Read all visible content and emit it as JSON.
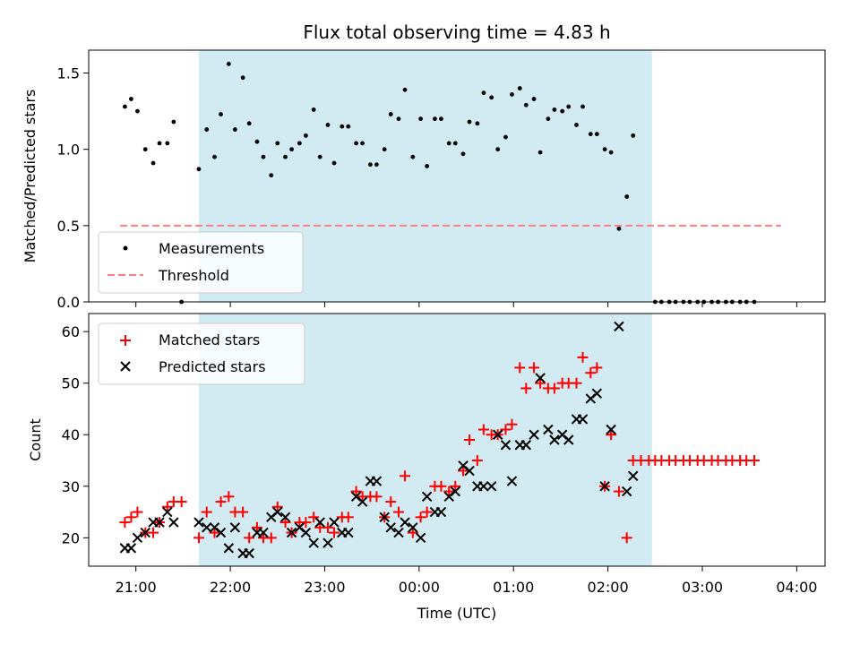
{
  "figure": {
    "title": "Flux total observing time = 4.83 h",
    "shaded_region": {
      "x_start": "21:40",
      "x_end": "02:28"
    },
    "shade_color": "#add8e6",
    "colors": {
      "measurement": "#000000",
      "threshold": "#ff7f7f",
      "matched": "#ff0000",
      "predicted": "#000000"
    }
  },
  "chart_data": [
    {
      "type": "scatter",
      "ylabel": "Matched/Predicted stars",
      "ylim": [
        0,
        1.65
      ],
      "yticks": [
        "0.0",
        "0.5",
        "1.0",
        "1.5"
      ],
      "grid": false,
      "legend_position": "lower-left",
      "legend": [
        "Measurements",
        "Threshold"
      ],
      "threshold": {
        "y": 0.5,
        "x_start": "20:50",
        "x_end": "03:50"
      },
      "measurements": [
        [
          "20:53",
          1.28
        ],
        [
          "20:57",
          1.33
        ],
        [
          "21:01",
          1.25
        ],
        [
          "21:06",
          1.0
        ],
        [
          "21:11",
          0.91
        ],
        [
          "21:15",
          1.04
        ],
        [
          "21:20",
          1.04
        ],
        [
          "21:24",
          1.18
        ],
        [
          "21:29",
          0.0
        ],
        [
          "21:40",
          0.87
        ],
        [
          "21:45",
          1.13
        ],
        [
          "21:50",
          0.95
        ],
        [
          "21:54",
          1.23
        ],
        [
          "21:59",
          1.56
        ],
        [
          "22:03",
          1.13
        ],
        [
          "22:08",
          1.47
        ],
        [
          "22:12",
          1.17
        ],
        [
          "22:17",
          1.05
        ],
        [
          "22:21",
          0.95
        ],
        [
          "22:26",
          0.83
        ],
        [
          "22:30",
          1.04
        ],
        [
          "22:35",
          0.95
        ],
        [
          "22:39",
          1.0
        ],
        [
          "22:44",
          1.04
        ],
        [
          "22:48",
          1.09
        ],
        [
          "22:53",
          1.26
        ],
        [
          "22:57",
          0.95
        ],
        [
          "23:02",
          1.16
        ],
        [
          "23:06",
          0.91
        ],
        [
          "23:11",
          1.15
        ],
        [
          "23:15",
          1.15
        ],
        [
          "23:20",
          1.04
        ],
        [
          "23:24",
          1.04
        ],
        [
          "23:29",
          0.9
        ],
        [
          "23:33",
          0.9
        ],
        [
          "23:38",
          1.0
        ],
        [
          "23:42",
          1.23
        ],
        [
          "23:47",
          1.2
        ],
        [
          "23:51",
          1.39
        ],
        [
          "23:56",
          0.95
        ],
        [
          "00:01",
          1.2
        ],
        [
          "00:05",
          0.89
        ],
        [
          "00:10",
          1.2
        ],
        [
          "00:14",
          1.2
        ],
        [
          "00:19",
          1.04
        ],
        [
          "00:23",
          1.04
        ],
        [
          "00:28",
          0.97
        ],
        [
          "00:32",
          1.18
        ],
        [
          "00:37",
          1.17
        ],
        [
          "00:41",
          1.37
        ],
        [
          "00:46",
          1.34
        ],
        [
          "00:50",
          1.0
        ],
        [
          "00:55",
          1.08
        ],
        [
          "00:59",
          1.36
        ],
        [
          "01:04",
          1.4
        ],
        [
          "01:08",
          1.29
        ],
        [
          "01:13",
          1.33
        ],
        [
          "01:17",
          0.98
        ],
        [
          "01:22",
          1.2
        ],
        [
          "01:26",
          1.26
        ],
        [
          "01:31",
          1.25
        ],
        [
          "01:35",
          1.28
        ],
        [
          "01:40",
          1.16
        ],
        [
          "01:44",
          1.28
        ],
        [
          "01:49",
          1.1
        ],
        [
          "01:53",
          1.1
        ],
        [
          "01:58",
          1.0
        ],
        [
          "02:02",
          0.98
        ],
        [
          "02:07",
          0.48
        ],
        [
          "02:12",
          0.69
        ],
        [
          "02:16",
          1.09
        ],
        [
          "02:30",
          0.0
        ],
        [
          "02:34",
          0.0
        ],
        [
          "02:39",
          0.0
        ],
        [
          "02:43",
          0.0
        ],
        [
          "02:48",
          0.0
        ],
        [
          "02:52",
          0.0
        ],
        [
          "02:57",
          0.0
        ],
        [
          "03:01",
          0.0
        ],
        [
          "03:06",
          0.0
        ],
        [
          "03:10",
          0.0
        ],
        [
          "03:15",
          0.0
        ],
        [
          "03:19",
          0.0
        ],
        [
          "03:24",
          0.0
        ],
        [
          "03:28",
          0.0
        ],
        [
          "03:33",
          0.0
        ]
      ]
    },
    {
      "type": "scatter",
      "xlabel": "Time (UTC)",
      "ylabel": "Count",
      "ylim": [
        14.5,
        63.5
      ],
      "yticks": [
        "20",
        "30",
        "40",
        "50",
        "60"
      ],
      "xticks": [
        "21:00",
        "22:00",
        "23:00",
        "00:00",
        "01:00",
        "02:00",
        "03:00",
        "04:00"
      ],
      "grid": false,
      "legend_position": "upper-left",
      "legend": [
        "Matched stars",
        "Predicted stars"
      ],
      "series": [
        {
          "name": "Matched stars",
          "marker": "+",
          "values": [
            [
              "20:53",
              23
            ],
            [
              "20:57",
              24
            ],
            [
              "21:01",
              25
            ],
            [
              "21:06",
              21
            ],
            [
              "21:11",
              21
            ],
            [
              "21:15",
              23
            ],
            [
              "21:20",
              26
            ],
            [
              "21:24",
              27
            ],
            [
              "21:29",
              27
            ],
            [
              "21:40",
              20
            ],
            [
              "21:45",
              25
            ],
            [
              "21:50",
              21
            ],
            [
              "21:54",
              27
            ],
            [
              "21:59",
              28
            ],
            [
              "22:03",
              25
            ],
            [
              "22:08",
              25
            ],
            [
              "22:12",
              20
            ],
            [
              "22:17",
              22
            ],
            [
              "22:21",
              20
            ],
            [
              "22:26",
              20
            ],
            [
              "22:30",
              26
            ],
            [
              "22:35",
              23
            ],
            [
              "22:39",
              21
            ],
            [
              "22:44",
              23
            ],
            [
              "22:48",
              23
            ],
            [
              "22:53",
              24
            ],
            [
              "22:57",
              22
            ],
            [
              "23:02",
              22
            ],
            [
              "23:06",
              21
            ],
            [
              "23:11",
              24
            ],
            [
              "23:15",
              24
            ],
            [
              "23:20",
              29
            ],
            [
              "23:24",
              28
            ],
            [
              "23:29",
              28
            ],
            [
              "23:33",
              28
            ],
            [
              "23:38",
              24
            ],
            [
              "23:42",
              27
            ],
            [
              "23:47",
              25
            ],
            [
              "23:51",
              32
            ],
            [
              "23:56",
              21
            ],
            [
              "00:01",
              24
            ],
            [
              "00:05",
              25
            ],
            [
              "00:10",
              30
            ],
            [
              "00:14",
              30
            ],
            [
              "00:19",
              29
            ],
            [
              "00:23",
              30
            ],
            [
              "00:28",
              33
            ],
            [
              "00:32",
              39
            ],
            [
              "00:37",
              35
            ],
            [
              "00:41",
              41
            ],
            [
              "00:46",
              40
            ],
            [
              "00:50",
              40
            ],
            [
              "00:55",
              41
            ],
            [
              "00:59",
              42
            ],
            [
              "01:04",
              53
            ],
            [
              "01:08",
              49
            ],
            [
              "01:13",
              53
            ],
            [
              "01:17",
              50
            ],
            [
              "01:22",
              49
            ],
            [
              "01:26",
              49
            ],
            [
              "01:31",
              50
            ],
            [
              "01:35",
              50
            ],
            [
              "01:40",
              50
            ],
            [
              "01:44",
              55
            ],
            [
              "01:49",
              52
            ],
            [
              "01:53",
              53
            ],
            [
              "01:58",
              30
            ],
            [
              "02:02",
              40
            ],
            [
              "02:07",
              29
            ],
            [
              "02:12",
              20
            ],
            [
              "02:16",
              35
            ],
            [
              "02:21",
              35
            ],
            [
              "02:26",
              35
            ],
            [
              "02:30",
              35
            ],
            [
              "02:34",
              35
            ],
            [
              "02:39",
              35
            ],
            [
              "02:43",
              35
            ],
            [
              "02:48",
              35
            ],
            [
              "02:52",
              35
            ],
            [
              "02:57",
              35
            ],
            [
              "03:01",
              35
            ],
            [
              "03:06",
              35
            ],
            [
              "03:10",
              35
            ],
            [
              "03:15",
              35
            ],
            [
              "03:19",
              35
            ],
            [
              "03:24",
              35
            ],
            [
              "03:28",
              35
            ],
            [
              "03:33",
              35
            ]
          ]
        },
        {
          "name": "Predicted stars",
          "marker": "x",
          "values": [
            [
              "20:53",
              18
            ],
            [
              "20:57",
              18
            ],
            [
              "21:01",
              20
            ],
            [
              "21:06",
              21
            ],
            [
              "21:11",
              23
            ],
            [
              "21:15",
              23
            ],
            [
              "21:20",
              25
            ],
            [
              "21:24",
              23
            ],
            [
              "21:40",
              23
            ],
            [
              "21:45",
              22
            ],
            [
              "21:50",
              22
            ],
            [
              "21:54",
              21
            ],
            [
              "21:59",
              18
            ],
            [
              "22:03",
              22
            ],
            [
              "22:08",
              17
            ],
            [
              "22:12",
              17
            ],
            [
              "22:17",
              21
            ],
            [
              "22:21",
              21
            ],
            [
              "22:26",
              24
            ],
            [
              "22:30",
              25
            ],
            [
              "22:35",
              24
            ],
            [
              "22:39",
              21
            ],
            [
              "22:44",
              22
            ],
            [
              "22:48",
              21
            ],
            [
              "22:53",
              19
            ],
            [
              "22:57",
              23
            ],
            [
              "23:02",
              19
            ],
            [
              "23:06",
              23
            ],
            [
              "23:11",
              21
            ],
            [
              "23:15",
              21
            ],
            [
              "23:20",
              28
            ],
            [
              "23:24",
              27
            ],
            [
              "23:29",
              31
            ],
            [
              "23:33",
              31
            ],
            [
              "23:38",
              24
            ],
            [
              "23:42",
              22
            ],
            [
              "23:47",
              21
            ],
            [
              "23:51",
              23
            ],
            [
              "23:56",
              22
            ],
            [
              "00:01",
              20
            ],
            [
              "00:05",
              28
            ],
            [
              "00:10",
              25
            ],
            [
              "00:14",
              25
            ],
            [
              "00:19",
              28
            ],
            [
              "00:23",
              29
            ],
            [
              "00:28",
              34
            ],
            [
              "00:32",
              33
            ],
            [
              "00:37",
              30
            ],
            [
              "00:41",
              30
            ],
            [
              "00:46",
              30
            ],
            [
              "00:50",
              40
            ],
            [
              "00:55",
              38
            ],
            [
              "00:59",
              31
            ],
            [
              "01:04",
              38
            ],
            [
              "01:08",
              38
            ],
            [
              "01:13",
              40
            ],
            [
              "01:17",
              51
            ],
            [
              "01:22",
              41
            ],
            [
              "01:26",
              39
            ],
            [
              "01:31",
              40
            ],
            [
              "01:35",
              39
            ],
            [
              "01:40",
              43
            ],
            [
              "01:44",
              43
            ],
            [
              "01:49",
              47
            ],
            [
              "01:53",
              48
            ],
            [
              "01:58",
              30
            ],
            [
              "02:02",
              41
            ],
            [
              "02:07",
              61
            ],
            [
              "02:12",
              29
            ],
            [
              "02:16",
              32
            ]
          ]
        }
      ]
    }
  ]
}
